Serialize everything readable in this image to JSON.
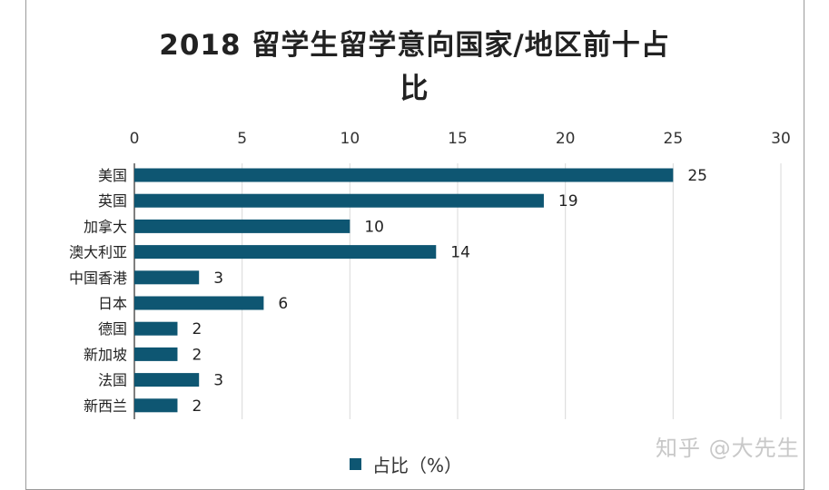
{
  "chart_data": {
    "type": "bar",
    "orientation": "horizontal",
    "title_line1": "2018 留学生留学意向国家/地区前十占",
    "title_line2": "比",
    "categories": [
      "美国",
      "英国",
      "加拿大",
      "澳大利亚",
      "中国香港",
      "日本",
      "德国",
      "新加坡",
      "法国",
      "新西兰"
    ],
    "series": [
      {
        "name": "占比（%）",
        "values": [
          25,
          19,
          10,
          14,
          3,
          6,
          2,
          2,
          3,
          2
        ],
        "color": "#0e5672"
      }
    ],
    "xlim": [
      0,
      30
    ],
    "xticks": [
      "0",
      "5",
      "10",
      "15",
      "20",
      "25",
      "30"
    ],
    "xaxis_position": "top",
    "grid": true,
    "legend_position": "bottom"
  },
  "watermark": "知乎 @大先生"
}
